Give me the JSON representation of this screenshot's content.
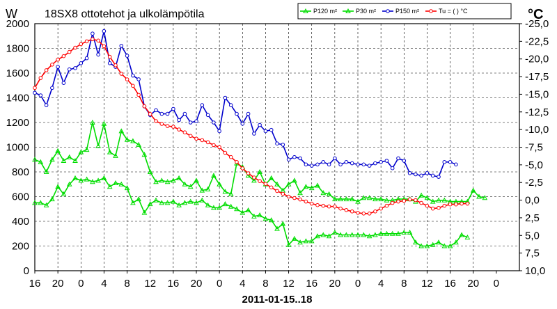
{
  "chart_data": {
    "type": "line",
    "title": "18SX8 ottotehot ja ulkolämpötila",
    "left_unit": "W",
    "right_unit": "°C",
    "xlabel": "2011-01-15..18",
    "x_range_hours": [
      0,
      84
    ],
    "x_tick_labels": [
      "16",
      "20",
      "0",
      "4",
      "8",
      "12",
      "16",
      "20",
      "0",
      "4",
      "8",
      "12",
      "16",
      "20",
      "0",
      "4",
      "8",
      "12",
      "16",
      "20",
      "0"
    ],
    "y_left": {
      "range": [
        0,
        2000
      ],
      "step": 200,
      "tick_labels": [
        "0",
        "200",
        "400",
        "600",
        "800",
        "1000",
        "1200",
        "1400",
        "1600",
        "1800",
        "2000"
      ]
    },
    "y_right": {
      "range": [
        10,
        -25
      ],
      "step": -2.5,
      "tick_labels": [
        "10,0",
        "7,5",
        "5,0",
        "2,5",
        "0,0",
        "-2,5",
        "-5,0",
        "-7,5",
        "-10,0",
        "-12,5",
        "-15,0",
        "-17,5",
        "-20,0",
        "-22,5",
        "-25,0"
      ]
    },
    "legend": {
      "position": "top-right",
      "entries": [
        "P120 m²",
        "P30 m²",
        "P150 m²",
        "Tu = ( ) °C"
      ]
    },
    "series": [
      {
        "name": "P120 m²",
        "axis": "left",
        "color": "#00dd00",
        "marker": "triangle",
        "values": [
          [
            0,
            900
          ],
          [
            1,
            880
          ],
          [
            2,
            800
          ],
          [
            3,
            900
          ],
          [
            4,
            970
          ],
          [
            5,
            890
          ],
          [
            6,
            920
          ],
          [
            7,
            890
          ],
          [
            8,
            960
          ],
          [
            9,
            980
          ],
          [
            10,
            1200
          ],
          [
            11,
            1010
          ],
          [
            12,
            1190
          ],
          [
            13,
            960
          ],
          [
            14,
            930
          ],
          [
            15,
            1130
          ],
          [
            16,
            1060
          ],
          [
            17,
            1050
          ],
          [
            18,
            1020
          ],
          [
            19,
            940
          ],
          [
            20,
            800
          ],
          [
            21,
            720
          ],
          [
            22,
            730
          ],
          [
            23,
            720
          ],
          [
            24,
            730
          ],
          [
            25,
            750
          ],
          [
            26,
            700
          ],
          [
            27,
            680
          ],
          [
            28,
            730
          ],
          [
            29,
            650
          ],
          [
            30,
            660
          ],
          [
            31,
            770
          ],
          [
            32,
            700
          ],
          [
            33,
            640
          ],
          [
            34,
            620
          ],
          [
            35,
            870
          ],
          [
            36,
            840
          ],
          [
            37,
            770
          ],
          [
            38,
            730
          ],
          [
            39,
            800
          ],
          [
            40,
            700
          ],
          [
            41,
            750
          ],
          [
            42,
            700
          ],
          [
            43,
            650
          ],
          [
            44,
            700
          ],
          [
            45,
            730
          ],
          [
            46,
            630
          ],
          [
            47,
            680
          ],
          [
            48,
            670
          ],
          [
            49,
            690
          ],
          [
            50,
            630
          ],
          [
            51,
            620
          ],
          [
            52,
            580
          ],
          [
            53,
            580
          ],
          [
            54,
            580
          ],
          [
            55,
            580
          ],
          [
            56,
            560
          ],
          [
            57,
            590
          ],
          [
            58,
            590
          ],
          [
            59,
            580
          ],
          [
            60,
            580
          ],
          [
            61,
            570
          ],
          [
            62,
            570
          ],
          [
            63,
            580
          ],
          [
            64,
            580
          ],
          [
            65,
            580
          ],
          [
            66,
            560
          ],
          [
            67,
            610
          ],
          [
            68,
            590
          ],
          [
            69,
            560
          ],
          [
            70,
            570
          ],
          [
            71,
            570
          ],
          [
            72,
            560
          ],
          [
            73,
            560
          ],
          [
            74,
            560
          ],
          [
            75,
            560
          ],
          [
            76,
            650
          ],
          [
            77,
            600
          ],
          [
            78,
            590
          ]
        ]
      },
      {
        "name": "P30 m²",
        "axis": "left",
        "color": "#00dd00",
        "marker": "triangle",
        "values": [
          [
            0,
            550
          ],
          [
            1,
            550
          ],
          [
            2,
            530
          ],
          [
            3,
            580
          ],
          [
            4,
            680
          ],
          [
            5,
            620
          ],
          [
            6,
            700
          ],
          [
            7,
            750
          ],
          [
            8,
            730
          ],
          [
            9,
            740
          ],
          [
            10,
            720
          ],
          [
            11,
            730
          ],
          [
            12,
            750
          ],
          [
            13,
            680
          ],
          [
            14,
            710
          ],
          [
            15,
            700
          ],
          [
            16,
            670
          ],
          [
            17,
            550
          ],
          [
            18,
            580
          ],
          [
            19,
            470
          ],
          [
            20,
            540
          ],
          [
            21,
            570
          ],
          [
            22,
            550
          ],
          [
            23,
            550
          ],
          [
            24,
            560
          ],
          [
            25,
            530
          ],
          [
            26,
            550
          ],
          [
            27,
            560
          ],
          [
            28,
            550
          ],
          [
            29,
            570
          ],
          [
            30,
            530
          ],
          [
            31,
            510
          ],
          [
            32,
            510
          ],
          [
            33,
            540
          ],
          [
            34,
            520
          ],
          [
            35,
            500
          ],
          [
            36,
            470
          ],
          [
            37,
            490
          ],
          [
            38,
            440
          ],
          [
            39,
            450
          ],
          [
            40,
            420
          ],
          [
            41,
            410
          ],
          [
            42,
            340
          ],
          [
            43,
            380
          ],
          [
            44,
            210
          ],
          [
            45,
            260
          ],
          [
            46,
            230
          ],
          [
            47,
            240
          ],
          [
            48,
            240
          ],
          [
            49,
            280
          ],
          [
            50,
            290
          ],
          [
            51,
            280
          ],
          [
            52,
            310
          ],
          [
            53,
            290
          ],
          [
            54,
            290
          ],
          [
            55,
            290
          ],
          [
            56,
            290
          ],
          [
            57,
            290
          ],
          [
            58,
            280
          ],
          [
            59,
            290
          ],
          [
            60,
            300
          ],
          [
            61,
            300
          ],
          [
            62,
            300
          ],
          [
            63,
            300
          ],
          [
            64,
            310
          ],
          [
            65,
            310
          ],
          [
            66,
            230
          ],
          [
            67,
            200
          ],
          [
            68,
            200
          ],
          [
            69,
            210
          ],
          [
            70,
            230
          ],
          [
            71,
            200
          ],
          [
            72,
            200
          ],
          [
            73,
            230
          ],
          [
            74,
            290
          ],
          [
            75,
            270
          ]
        ]
      },
      {
        "name": "P150 m²",
        "axis": "left",
        "color": "#0000cc",
        "marker": "circle",
        "values": [
          [
            0,
            1440
          ],
          [
            1,
            1420
          ],
          [
            2,
            1340
          ],
          [
            3,
            1480
          ],
          [
            4,
            1650
          ],
          [
            5,
            1520
          ],
          [
            6,
            1630
          ],
          [
            7,
            1640
          ],
          [
            8,
            1680
          ],
          [
            9,
            1720
          ],
          [
            10,
            1920
          ],
          [
            11,
            1750
          ],
          [
            12,
            1940
          ],
          [
            13,
            1680
          ],
          [
            14,
            1650
          ],
          [
            15,
            1820
          ],
          [
            16,
            1740
          ],
          [
            17,
            1580
          ],
          [
            18,
            1550
          ],
          [
            19,
            1330
          ],
          [
            20,
            1260
          ],
          [
            21,
            1300
          ],
          [
            22,
            1270
          ],
          [
            23,
            1270
          ],
          [
            24,
            1310
          ],
          [
            25,
            1220
          ],
          [
            26,
            1270
          ],
          [
            27,
            1200
          ],
          [
            28,
            1210
          ],
          [
            29,
            1340
          ],
          [
            30,
            1260
          ],
          [
            31,
            1200
          ],
          [
            32,
            1130
          ],
          [
            33,
            1400
          ],
          [
            34,
            1340
          ],
          [
            35,
            1270
          ],
          [
            36,
            1190
          ],
          [
            37,
            1270
          ],
          [
            38,
            1110
          ],
          [
            39,
            1180
          ],
          [
            40,
            1130
          ],
          [
            41,
            1140
          ],
          [
            42,
            1030
          ],
          [
            43,
            1020
          ],
          [
            44,
            900
          ],
          [
            45,
            920
          ],
          [
            46,
            910
          ],
          [
            47,
            860
          ],
          [
            48,
            850
          ],
          [
            49,
            860
          ],
          [
            50,
            880
          ],
          [
            51,
            860
          ],
          [
            52,
            910
          ],
          [
            53,
            860
          ],
          [
            54,
            880
          ],
          [
            55,
            870
          ],
          [
            56,
            860
          ],
          [
            57,
            860
          ],
          [
            58,
            850
          ],
          [
            59,
            870
          ],
          [
            60,
            880
          ],
          [
            61,
            890
          ],
          [
            62,
            830
          ],
          [
            63,
            910
          ],
          [
            64,
            890
          ],
          [
            65,
            790
          ],
          [
            66,
            780
          ],
          [
            67,
            770
          ],
          [
            68,
            790
          ],
          [
            69,
            770
          ],
          [
            70,
            760
          ],
          [
            71,
            880
          ],
          [
            72,
            880
          ],
          [
            73,
            860
          ]
        ]
      },
      {
        "name": "Tu = ( ) °C",
        "axis": "right",
        "color": "#ff0000",
        "marker": "circle",
        "values": [
          [
            0,
            -15.9
          ],
          [
            1,
            -17.3
          ],
          [
            2,
            -18.4
          ],
          [
            3,
            -19.2
          ],
          [
            4,
            -19.9
          ],
          [
            5,
            -20.4
          ],
          [
            6,
            -21
          ],
          [
            7,
            -21.6
          ],
          [
            8,
            -22.1
          ],
          [
            9,
            -22.5
          ],
          [
            10,
            -22.8
          ],
          [
            11,
            -22.6
          ],
          [
            12,
            -21.8
          ],
          [
            13,
            -20.3
          ],
          [
            14,
            -19.1
          ],
          [
            15,
            -17.9
          ],
          [
            16,
            -17.1
          ],
          [
            17,
            -16.2
          ],
          [
            18,
            -14.9
          ],
          [
            19,
            -13.3
          ],
          [
            20,
            -12.2
          ],
          [
            21,
            -11.2
          ],
          [
            22,
            -10.8
          ],
          [
            23,
            -10.5
          ],
          [
            24,
            -10.4
          ],
          [
            25,
            -10
          ],
          [
            26,
            -9.6
          ],
          [
            27,
            -9.1
          ],
          [
            28,
            -8.7
          ],
          [
            29,
            -8.5
          ],
          [
            30,
            -8.2
          ],
          [
            31,
            -7.8
          ],
          [
            32,
            -7.5
          ],
          [
            33,
            -6.7
          ],
          [
            34,
            -6.1
          ],
          [
            35,
            -5.4
          ],
          [
            36,
            -4.5
          ],
          [
            37,
            -3.8
          ],
          [
            38,
            -3.2
          ],
          [
            39,
            -2.7
          ],
          [
            40,
            -2.3
          ],
          [
            41,
            -1.8
          ],
          [
            42,
            -1.3
          ],
          [
            43,
            -0.9
          ],
          [
            44,
            -0.5
          ],
          [
            45,
            -0.3
          ],
          [
            46,
            -0.1
          ],
          [
            47,
            0.2
          ],
          [
            48,
            0.5
          ],
          [
            49,
            0.7
          ],
          [
            50,
            0.8
          ],
          [
            51,
            0.9
          ],
          [
            52,
            0.9
          ],
          [
            53,
            1.2
          ],
          [
            54,
            1.4
          ],
          [
            55,
            1.6
          ],
          [
            56,
            1.8
          ],
          [
            57,
            1.9
          ],
          [
            58,
            1.9
          ],
          [
            59,
            1.6
          ],
          [
            60,
            1.2
          ],
          [
            61,
            0.8
          ],
          [
            62,
            0.4
          ],
          [
            63,
            0.2
          ],
          [
            64,
            0.1
          ],
          [
            65,
            -0.1
          ],
          [
            66,
            0
          ],
          [
            67,
            0.4
          ],
          [
            68,
            0.8
          ],
          [
            69,
            1.2
          ],
          [
            70,
            1.1
          ],
          [
            71,
            0.8
          ],
          [
            72,
            0.6
          ],
          [
            73,
            0.6
          ],
          [
            74,
            0.5
          ],
          [
            75,
            0.5
          ]
        ]
      }
    ]
  }
}
